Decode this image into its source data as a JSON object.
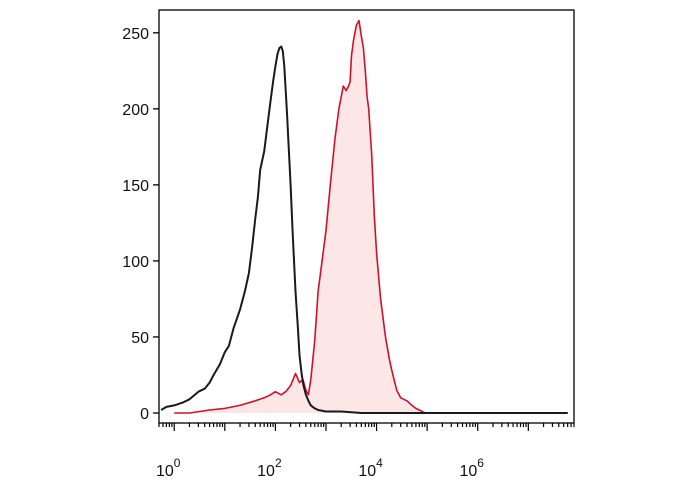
{
  "chart_data": {
    "type": "area",
    "title": "",
    "xlabel": "",
    "ylabel": "",
    "x_scale": "log10",
    "xlim": [
      0.5,
      80000000
    ],
    "ylim": [
      0,
      265
    ],
    "grid": false,
    "y_ticks": [
      {
        "value": 0,
        "label": "0"
      },
      {
        "value": 50,
        "label": "50"
      },
      {
        "value": 100,
        "label": "100"
      },
      {
        "value": 150,
        "label": "150"
      },
      {
        "value": 200,
        "label": "200"
      },
      {
        "value": 250,
        "label": "250"
      }
    ],
    "x_ticks": [
      {
        "value": 1,
        "base": "10",
        "exp": "0"
      },
      {
        "value": 100,
        "base": "10",
        "exp": "2"
      },
      {
        "value": 10000,
        "base": "10",
        "exp": "4"
      },
      {
        "value": 1000000,
        "base": "10",
        "exp": "6"
      }
    ],
    "series": [
      {
        "color": "#1a1a1a",
        "fill": "none",
        "x": [
          0.55,
          0.7,
          1,
          1.5,
          2,
          3,
          4,
          5,
          6,
          8,
          10,
          12,
          15,
          20,
          25,
          30,
          35,
          40,
          45,
          50,
          60,
          70,
          80,
          90,
          100,
          110,
          120,
          130,
          140,
          150,
          160,
          170,
          180,
          200,
          220,
          250,
          280,
          300,
          330,
          360,
          400,
          450,
          500,
          600,
          700,
          1000,
          2000,
          5000,
          10000,
          100000,
          1000000,
          10000000,
          60000000
        ],
        "y": [
          2,
          4,
          5,
          7,
          9,
          14,
          16,
          20,
          25,
          32,
          40,
          44,
          56,
          68,
          80,
          92,
          110,
          128,
          142,
          160,
          172,
          190,
          205,
          218,
          228,
          236,
          240,
          241,
          238,
          228,
          212,
          196,
          180,
          150,
          118,
          80,
          55,
          38,
          26,
          18,
          12,
          8,
          5,
          3,
          2,
          1,
          1,
          0,
          0,
          0,
          0,
          0,
          0
        ]
      },
      {
        "color": "#d0102a",
        "fill": "#fde6e6",
        "x": [
          1,
          2,
          5,
          10,
          20,
          40,
          60,
          80,
          100,
          130,
          160,
          200,
          250,
          300,
          350,
          400,
          450,
          500,
          600,
          700,
          800,
          1000,
          1200,
          1500,
          1800,
          2000,
          2200,
          2500,
          2800,
          3000,
          3200,
          3500,
          4000,
          4500,
          5000,
          5500,
          6000,
          6500,
          7000,
          8000,
          9000,
          10000,
          12000,
          15000,
          18000,
          20000,
          25000,
          30000,
          40000,
          50000,
          60000,
          70000,
          80000,
          90000,
          1000000,
          10000000,
          60000000
        ],
        "y": [
          0,
          0,
          2,
          3,
          5,
          8,
          10,
          12,
          14,
          12,
          14,
          18,
          26,
          20,
          22,
          15,
          12,
          22,
          48,
          80,
          95,
          120,
          148,
          180,
          200,
          208,
          215,
          212,
          215,
          218,
          235,
          245,
          255,
          258,
          248,
          240,
          225,
          208,
          200,
          170,
          130,
          105,
          75,
          50,
          35,
          28,
          15,
          10,
          8,
          5,
          3,
          2,
          1,
          0,
          0,
          0,
          0
        ]
      }
    ]
  }
}
